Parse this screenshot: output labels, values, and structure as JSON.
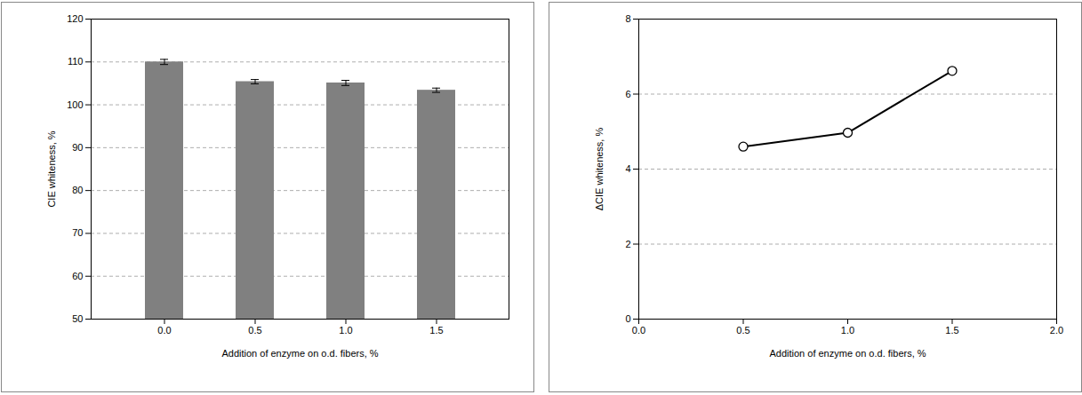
{
  "chart_data": [
    {
      "type": "bar",
      "categories": [
        "0.0",
        "0.5",
        "1.0",
        "1.5"
      ],
      "values": [
        110.0,
        105.4,
        105.1,
        103.4
      ],
      "errors": [
        0.6,
        0.5,
        0.6,
        0.5
      ],
      "color": "#808080",
      "x_label": "Addition of enzyme on o.d. fibers, %",
      "y_label": "CIE whiteness, %",
      "ylim": [
        50,
        120
      ],
      "yticks": [
        50,
        60,
        70,
        80,
        90,
        100,
        110,
        120
      ],
      "grid": true
    },
    {
      "type": "line",
      "x": [
        0.5,
        1.0,
        1.5
      ],
      "values": [
        4.6,
        4.97,
        6.62
      ],
      "color": "#000000",
      "marker": "circle",
      "line_style": "solid",
      "x_label": "Addition of enzyme on o.d. fibers, %",
      "y_label": "ΔCIE whiteness, %",
      "xlim": [
        0,
        2
      ],
      "xticks": [
        {
          "value": 0,
          "label": "0.0"
        },
        {
          "value": 0.5,
          "label": "0.5"
        },
        {
          "value": 1,
          "label": "1.0"
        },
        {
          "value": 1.5,
          "label": "1.5"
        },
        {
          "value": 2,
          "label": "2.0"
        }
      ],
      "ylim": [
        0,
        8
      ],
      "yticks": [
        0,
        2,
        4,
        6,
        8
      ],
      "grid": true
    }
  ]
}
